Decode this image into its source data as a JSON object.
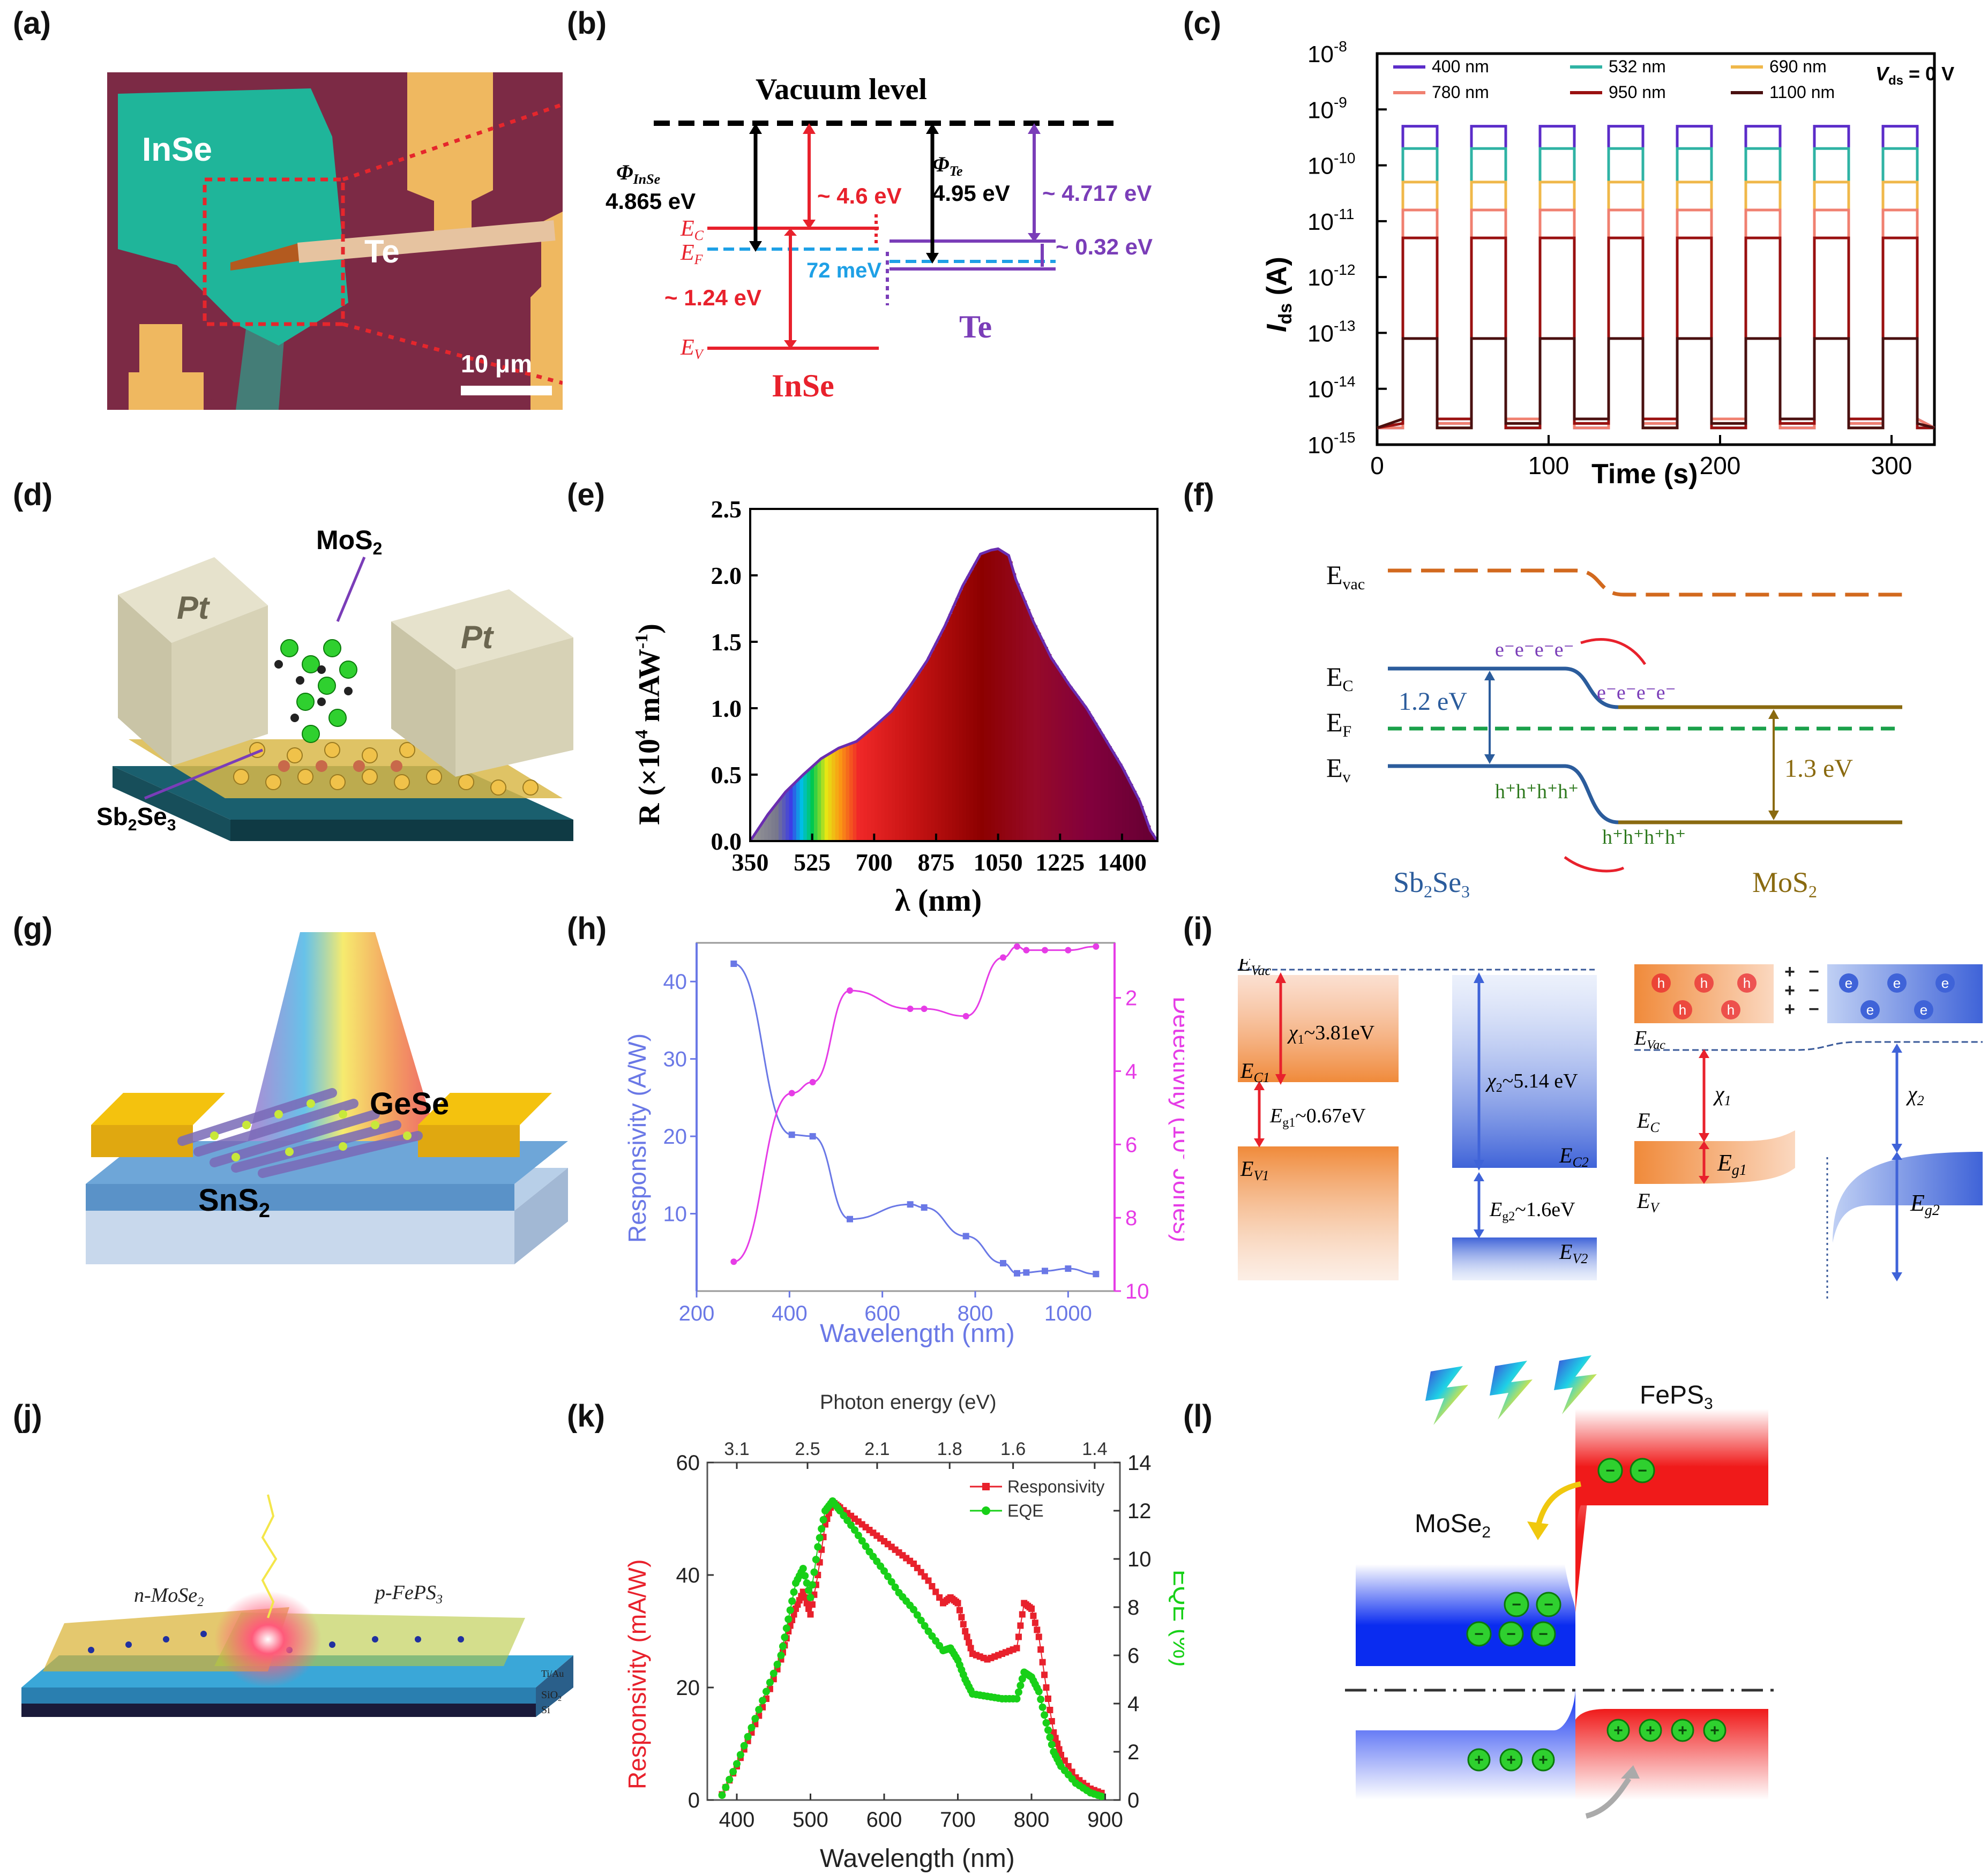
{
  "labels": {
    "a": "(a)",
    "b": "(b)",
    "c": "(c)",
    "d": "(d)",
    "e": "(e)",
    "f": "(f)",
    "g": "(g)",
    "h": "(h)",
    "i": "(i)",
    "j": "(j)",
    "k": "(k)",
    "l": "(l)"
  },
  "colors": {
    "red": "#e8212c",
    "purple": "#7a3db8",
    "cyan": "#1ea0e6",
    "blue": "#3f63d8",
    "magenta": "#e63ce6",
    "green": "#18d018",
    "brown": "#8a6a10",
    "orange": "#f08a3a"
  },
  "panel_a": {
    "material_1": "InSe",
    "material_2": "Te",
    "scale_bar": "10 μm"
  },
  "panel_b": {
    "title": "Vacuum level",
    "phi_inse": "Φ",
    "phi_inse_sub": "InSe",
    "phi_inse_val": "4.865 eV",
    "phi_te": "Φ",
    "phi_te_sub": "Te",
    "phi_te_val": "4.95 eV",
    "e_inse": "~ 4.6 eV",
    "e_te": "~ 4.717 eV",
    "e_offset": "~ 0.32 eV",
    "e_gap": "~ 1.24 eV",
    "e_fermi": "72 meV",
    "ec": "E",
    "ec_sub": "C",
    "ef": "E",
    "ef_sub": "F",
    "ev": "E",
    "ev_sub": "V",
    "material_1": "InSe",
    "material_2": "Te"
  },
  "panel_d": {
    "electrode_left": "Pt",
    "electrode_right": "Pt",
    "top": "MoS",
    "top_sub": "2",
    "bottom": "Sb",
    "bottom_sub1": "2",
    "bottom_mid": "Se",
    "bottom_sub2": "3"
  },
  "panel_f": {
    "evac": "E",
    "evac_sub": "vac",
    "ec": "E",
    "ec_sub": "C",
    "ef": "E",
    "ef_sub": "F",
    "ev": "E",
    "ev_sub": "v",
    "gap_1": "1.2 eV",
    "gap_2": "1.3 eV",
    "electrons": "e⁻e⁻e⁻e⁻",
    "holes": "h⁺h⁺h⁺h⁺",
    "mat_1": "Sb",
    "mat_1_s1": "2",
    "mat_1_m": "Se",
    "mat_1_s2": "3",
    "mat_2": "MoS",
    "mat_2_s": "2"
  },
  "panel_g": {
    "material_1": "GeSe",
    "material_2": "SnS",
    "material_2_sub": "2"
  },
  "panel_i": {
    "evac": "E",
    "evac_sub": "Vac",
    "chi1": "χ",
    "chi1_sub": "1",
    "chi1_val": "~3.81eV",
    "chi2": "χ",
    "chi2_sub": "2",
    "chi2_val": "~5.14 eV",
    "ec1": "E",
    "ec1_sub": "C1",
    "ev1": "E",
    "ev1_sub": "V1",
    "ec2": "E",
    "ec2_sub": "C2",
    "ev2": "E",
    "ev2_sub": "V2",
    "eg1": "E",
    "eg1_sub": "g1",
    "eg1_val": "~0.67eV",
    "eg2": "E",
    "eg2_sub": "g2",
    "eg2_val": "~1.6eV",
    "r_evac": "E",
    "r_evac_sub": "Vac",
    "r_ec": "E",
    "r_ec_sub": "C",
    "r_ev": "E",
    "r_ev_sub": "V",
    "r_chi1": "χ",
    "r_chi1_sub": "1",
    "r_chi2": "χ",
    "r_chi2_sub": "2",
    "r_eg1": "E",
    "r_eg1_sub": "g1",
    "r_eg2": "E",
    "r_eg2_sub": "g2",
    "hole": "h",
    "electron": "e"
  },
  "panel_j": {
    "left": "n-MoSe",
    "left_sub": "2",
    "right": "p-FePS",
    "right_sub": "3",
    "layer_1": "SiO",
    "layer_1_sub": "2",
    "layer_2": "Si",
    "contact": "Ti/Au"
  },
  "panel_l": {
    "mat_1": "MoSe",
    "mat_1_sub": "2",
    "mat_2": "FePS",
    "mat_2_sub": "3",
    "minus": "−",
    "plus": "+"
  },
  "chart_data": [
    {
      "id": "c",
      "type": "line",
      "xlabel": "Time (s)",
      "ylabel": "I",
      "ylabel_sub": "ds",
      "ylabel_unit": " (A)",
      "xlim": [
        0,
        325
      ],
      "ylim_log10": [
        -15,
        -8
      ],
      "xticks": [
        "0",
        "100",
        "200",
        "300"
      ],
      "yticks": [
        {
          "base": "10",
          "exp": "-8"
        },
        {
          "base": "10",
          "exp": "-9"
        },
        {
          "base": "10",
          "exp": "-10"
        },
        {
          "base": "10",
          "exp": "-11"
        },
        {
          "base": "10",
          "exp": "-12"
        },
        {
          "base": "10",
          "exp": "-13"
        },
        {
          "base": "10",
          "exp": "-14"
        },
        {
          "base": "10",
          "exp": "-15"
        }
      ],
      "annotation": "V",
      "annotation_sub": "ds",
      "annotation_val": " = 0 V",
      "period_s": 40,
      "on_start_s": 15,
      "on_duration_s": 20,
      "cycles": 8,
      "series": [
        {
          "name": "400 nm",
          "on_level_log10": -9.3,
          "color": "#5b2cc9"
        },
        {
          "name": "532 nm",
          "on_level_log10": -9.7,
          "color": "#2fb3a4"
        },
        {
          "name": "690 nm",
          "on_level_log10": -10.3,
          "color": "#f0b84a"
        },
        {
          "name": "780 nm",
          "on_level_log10": -10.8,
          "color": "#f08070"
        },
        {
          "name": "950 nm",
          "on_level_log10": -11.3,
          "color": "#9a1010"
        },
        {
          "name": "1100 nm",
          "on_level_log10": -13.1,
          "color": "#4a1010"
        }
      ],
      "off_level_log10": -14.7
    },
    {
      "id": "e",
      "type": "area",
      "xlabel": "λ (nm)",
      "ylabel": "R (×10",
      "ylabel_exp": "4",
      "ylabel_tail": " mAW",
      "ylabel_exp2": "-1",
      "ylabel_end": ")",
      "xlim": [
        350,
        1500
      ],
      "ylim": [
        0,
        2.5
      ],
      "xticks": [
        "350",
        "525",
        "700",
        "875",
        "1050",
        "1225",
        "1400"
      ],
      "yticks": [
        "0.0",
        "0.5",
        "1.0",
        "1.5",
        "2.0",
        "2.5"
      ],
      "x": [
        350,
        400,
        450,
        500,
        550,
        600,
        650,
        700,
        750,
        800,
        850,
        900,
        950,
        1000,
        1030,
        1050,
        1080,
        1100,
        1150,
        1200,
        1250,
        1300,
        1350,
        1400,
        1450,
        1480,
        1500
      ],
      "y": [
        0.0,
        0.2,
        0.37,
        0.5,
        0.62,
        0.7,
        0.75,
        0.86,
        0.98,
        1.16,
        1.36,
        1.62,
        1.92,
        2.16,
        2.19,
        2.2,
        2.15,
        1.97,
        1.65,
        1.38,
        1.18,
        1.0,
        0.78,
        0.56,
        0.3,
        0.08,
        0.0
      ]
    },
    {
      "id": "h",
      "type": "line",
      "xlabel": "Wavelength (nm)",
      "ylabel_left": "Responsivity (A/W)",
      "ylabel_right": "Detectivity (10",
      "ylabel_right_exp": "9",
      "ylabel_right_tail": " Jones)",
      "xlim": [
        200,
        1100
      ],
      "ylim_left": [
        0,
        45
      ],
      "ylim_right": [
        10,
        0.5
      ],
      "xticks": [
        "200",
        "400",
        "600",
        "800",
        "1000"
      ],
      "yticks_left": [
        "10",
        "20",
        "30",
        "40"
      ],
      "yticks_right": [
        "2",
        "4",
        "6",
        "8",
        "10"
      ],
      "series": [
        {
          "name": "Responsivity",
          "axis": "left",
          "color": "#6a78e6",
          "x": [
            280,
            405,
            450,
            530,
            660,
            690,
            780,
            860,
            890,
            910,
            950,
            1000,
            1060
          ],
          "y": [
            42.3,
            20.2,
            20.0,
            9.3,
            11.2,
            10.8,
            7.1,
            3.6,
            2.3,
            2.4,
            2.6,
            2.9,
            2.2
          ]
        },
        {
          "name": "Detectivity",
          "axis": "right",
          "color": "#e63ce6",
          "x": [
            280,
            405,
            450,
            530,
            660,
            690,
            780,
            860,
            890,
            910,
            950,
            1000,
            1060
          ],
          "y": [
            9.2,
            4.6,
            4.3,
            1.8,
            2.3,
            2.3,
            2.5,
            0.9,
            0.6,
            0.7,
            0.7,
            0.7,
            0.6
          ]
        }
      ]
    },
    {
      "id": "k",
      "type": "scatter",
      "xlabel": "Wavelength (nm)",
      "xlabel_top": "Photon energy (eV)",
      "ylabel_left": "Responsivity (mA/W)",
      "ylabel_right": "EQE (%)",
      "xlim": [
        360,
        920
      ],
      "ylim_left": [
        0,
        60
      ],
      "ylim_right": [
        0,
        14
      ],
      "xticks": [
        "400",
        "500",
        "600",
        "700",
        "800",
        "900"
      ],
      "xticks_top": [
        "3.1",
        "2.5",
        "2.1",
        "1.8",
        "1.6",
        "1.4"
      ],
      "yticks_left": [
        "0",
        "20",
        "40",
        "60"
      ],
      "yticks_right": [
        "0",
        "2",
        "4",
        "6",
        "8",
        "10",
        "12",
        "14"
      ],
      "legend": [
        "Responsivity",
        "EQE"
      ],
      "series": [
        {
          "name": "Responsivity",
          "axis": "left",
          "color": "#e8212c",
          "x": [
            380,
            400,
            420,
            440,
            460,
            470,
            480,
            490,
            500,
            510,
            520,
            530,
            540,
            560,
            580,
            600,
            620,
            640,
            660,
            680,
            690,
            700,
            710,
            720,
            740,
            760,
            780,
            790,
            800,
            810,
            820,
            830,
            840,
            860,
            880,
            900
          ],
          "y": [
            1,
            6,
            12,
            18,
            25,
            30,
            34,
            37,
            33,
            40,
            49,
            53,
            52,
            50,
            48,
            46,
            44,
            42,
            39,
            35,
            36,
            35,
            30,
            26,
            25,
            26,
            27,
            35,
            34,
            29,
            20,
            12,
            8,
            4,
            2,
            1
          ]
        },
        {
          "name": "EQE",
          "axis": "right",
          "color": "#18d018",
          "x": [
            380,
            400,
            420,
            440,
            460,
            470,
            480,
            490,
            500,
            510,
            520,
            530,
            540,
            560,
            580,
            600,
            620,
            640,
            660,
            680,
            690,
            700,
            710,
            720,
            740,
            760,
            780,
            790,
            800,
            810,
            820,
            830,
            840,
            860,
            880,
            900
          ],
          "y": [
            0.2,
            1.5,
            3,
            4.5,
            6,
            7.5,
            9,
            9.6,
            8.4,
            10.5,
            12,
            12.4,
            12,
            11.2,
            10.3,
            9.5,
            8.6,
            7.9,
            7,
            6.2,
            6.3,
            5.8,
            5,
            4.4,
            4.3,
            4.2,
            4.2,
            5.3,
            5.1,
            4.5,
            3.2,
            2,
            1.4,
            0.7,
            0.3,
            0.1
          ]
        }
      ]
    }
  ]
}
